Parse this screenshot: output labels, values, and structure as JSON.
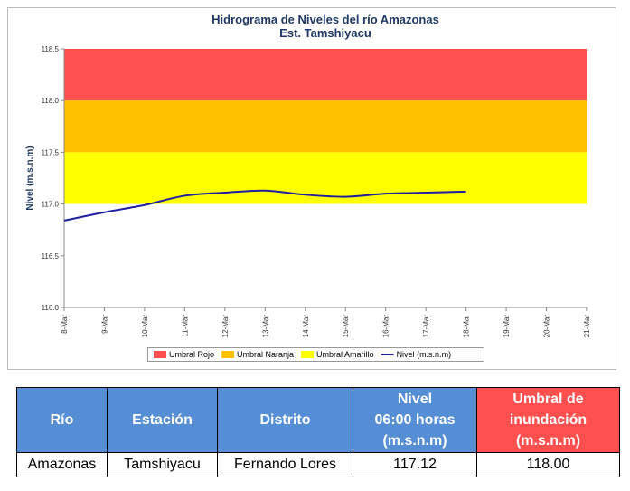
{
  "chart_data": {
    "type": "line",
    "title": [
      "Hidrograma de Niveles del río Amazonas",
      "Est. Tamshiyacu"
    ],
    "ylabel": "Nivel (m.s.n.m)",
    "categories": [
      "8-Mar",
      "9-Mar",
      "10-Mar",
      "11-Mar",
      "12-Mar",
      "13-Mar",
      "14-Mar",
      "15-Mar",
      "16-Mar",
      "17-Mar",
      "18-Mar",
      "19-Mar",
      "20-Mar",
      "21-Mar"
    ],
    "thresholds": [
      {
        "name": "Umbral Rojo",
        "color": "#ff4f4f",
        "from": 118.0,
        "to": 118.5
      },
      {
        "name": "Umbral Naranja",
        "color": "#ffc000",
        "from": 117.5,
        "to": 118.0
      },
      {
        "name": "Umbral Amarillo",
        "color": "#ffff00",
        "from": 117.0,
        "to": 117.5
      }
    ],
    "series": [
      {
        "name": "Nivel (m.s.n.m)",
        "color": "#1f1fa0",
        "values": [
          116.84,
          116.92,
          116.99,
          117.08,
          117.11,
          117.13,
          117.09,
          117.07,
          117.1,
          117.11,
          117.12,
          null,
          null,
          null
        ]
      }
    ],
    "ylim": [
      116.0,
      118.5
    ],
    "yticks": [
      {
        "value": 116.0,
        "label": "116.0"
      },
      {
        "value": 116.5,
        "label": "116.5"
      },
      {
        "value": 117.0,
        "label": "117.0"
      },
      {
        "value": 117.5,
        "label": "117.5"
      },
      {
        "value": 118.0,
        "label": "118.0"
      },
      {
        "value": 118.5,
        "label": "118.5"
      }
    ],
    "legend": "bottom"
  },
  "table": {
    "header": [
      [
        "Río"
      ],
      [
        "Estación"
      ],
      [
        "Distrito"
      ],
      [
        "Nivel",
        "06:00 horas",
        "(m.s.n.m)"
      ],
      [
        "Umbral de",
        "inundación",
        "(m.s.n.m)"
      ]
    ],
    "rows": [
      [
        "Amazonas",
        "Tamshiyacu",
        "Fernando Lores",
        "117.12",
        "118.00"
      ]
    ]
  }
}
